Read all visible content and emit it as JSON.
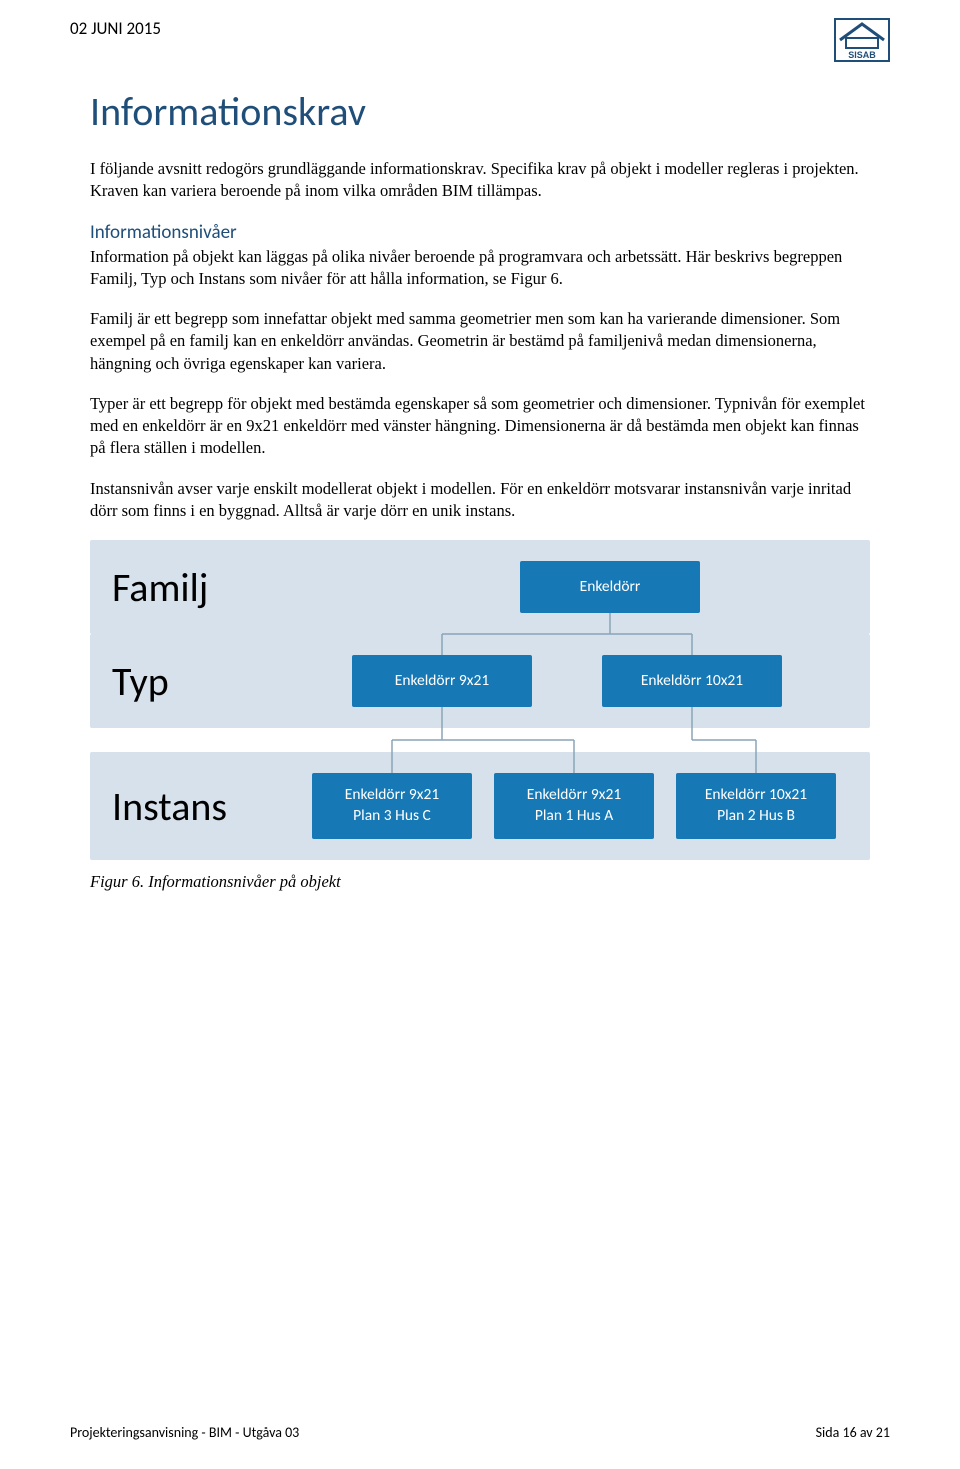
{
  "header": {
    "date": "02 JUNI 2015",
    "logo_label": "SISAB"
  },
  "title": "Informationskrav",
  "p1": "I följande avsnitt redogörs grundläggande informationskrav. Specifika krav på objekt i modeller regleras i projekten. Kraven kan variera beroende på inom vilka områden BIM tillämpas.",
  "subheading": "Informationsnivåer",
  "p2": "Information på objekt kan läggas på olika nivåer beroende på programvara och arbetssätt. Här beskrivs begreppen Familj, Typ och Instans som nivåer för att hålla information, se Figur 6.",
  "p3": "Familj är ett begrepp som innefattar objekt med samma geometrier men som kan ha varierande dimensioner. Som exempel på en familj kan en enkeldörr användas. Geometrin är bestämd på familjenivå medan dimensionerna, hängning och övriga egenskaper kan variera.",
  "p4": "Typer är ett begrepp för objekt med bestämda egenskaper så som geometrier och dimensioner. Typnivån för exemplet med en enkeldörr är en 9x21 enkeldörr med vänster hängning. Dimensionerna är då bestämda men objekt kan finnas på flera ställen i modellen.",
  "p5": "Instansnivån avser varje enskilt modellerat objekt i modellen. För en enkeldörr motsvarar instansnivån varje inritad dörr som finns i en byggnad. Alltså är varje dörr en unik instans.",
  "diagram": {
    "tiers": [
      {
        "label": "Familj",
        "nodes": [
          {
            "line1": "Enkeldörr"
          }
        ]
      },
      {
        "label": "Typ",
        "nodes": [
          {
            "line1": "Enkeldörr 9x21"
          },
          {
            "line1": "Enkeldörr 10x21"
          }
        ]
      },
      {
        "label": "Instans",
        "nodes": [
          {
            "line1": "Enkeldörr 9x21",
            "line2": "Plan 3 Hus C"
          },
          {
            "line1": "Enkeldörr 9x21",
            "line2": "Plan 1 Hus A"
          },
          {
            "line1": "Enkeldörr 10x21",
            "line2": "Plan 2 Hus B"
          }
        ]
      }
    ],
    "colors": {
      "tier_bg": "#d6e1ec",
      "node_bg": "#1678b5",
      "node_text": "#ffffff",
      "connector": "#8aa4b8"
    },
    "caption": "Figur 6. Informationsnivåer på objekt"
  },
  "footer": {
    "left": "Projekteringsanvisning - BIM - Utgåva 03",
    "right": "Sida 16 av 21"
  },
  "style": {
    "heading_color": "#1f4e79",
    "body_color": "#000000",
    "page_bg": "#ffffff"
  }
}
